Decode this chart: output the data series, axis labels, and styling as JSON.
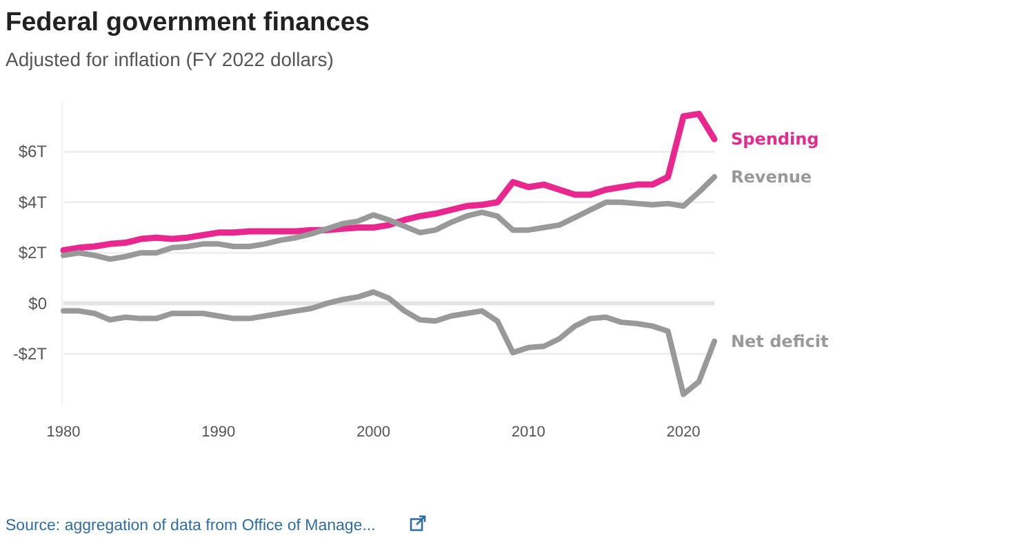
{
  "chart_data": {
    "type": "line",
    "title": "Federal government finances",
    "subtitle": "Adjusted for inflation (FY 2022 dollars)",
    "x": [
      1980,
      1981,
      1982,
      1983,
      1984,
      1985,
      1986,
      1987,
      1988,
      1989,
      1990,
      1991,
      1992,
      1993,
      1994,
      1995,
      1996,
      1997,
      1998,
      1999,
      2000,
      2001,
      2002,
      2003,
      2004,
      2005,
      2006,
      2007,
      2008,
      2009,
      2010,
      2011,
      2012,
      2013,
      2014,
      2015,
      2016,
      2017,
      2018,
      2019,
      2020,
      2021,
      2022
    ],
    "series": [
      {
        "name": "Spending",
        "color": "#e8288f",
        "values": [
          2.1,
          2.2,
          2.25,
          2.35,
          2.4,
          2.55,
          2.6,
          2.55,
          2.6,
          2.7,
          2.8,
          2.8,
          2.85,
          2.85,
          2.85,
          2.85,
          2.9,
          2.9,
          2.95,
          3.0,
          3.0,
          3.1,
          3.3,
          3.45,
          3.55,
          3.7,
          3.85,
          3.9,
          4.0,
          4.8,
          4.6,
          4.7,
          4.5,
          4.3,
          4.3,
          4.5,
          4.6,
          4.7,
          4.7,
          5.0,
          7.4,
          7.5,
          6.5
        ]
      },
      {
        "name": "Revenue",
        "color": "#999999",
        "values": [
          1.9,
          2.0,
          1.9,
          1.75,
          1.85,
          2.0,
          2.0,
          2.2,
          2.25,
          2.35,
          2.35,
          2.25,
          2.25,
          2.35,
          2.5,
          2.6,
          2.75,
          2.95,
          3.15,
          3.25,
          3.5,
          3.3,
          3.05,
          2.8,
          2.9,
          3.2,
          3.45,
          3.6,
          3.45,
          2.9,
          2.9,
          3.0,
          3.1,
          3.4,
          3.7,
          4.0,
          4.0,
          3.95,
          3.9,
          3.95,
          3.85,
          4.4,
          5.0
        ]
      },
      {
        "name": "Net deficit",
        "color": "#999999",
        "values": [
          -0.3,
          -0.3,
          -0.4,
          -0.65,
          -0.55,
          -0.6,
          -0.6,
          -0.4,
          -0.4,
          -0.4,
          -0.5,
          -0.6,
          -0.6,
          -0.5,
          -0.4,
          -0.3,
          -0.2,
          0,
          0.15,
          0.25,
          0.45,
          0.2,
          -0.3,
          -0.65,
          -0.7,
          -0.5,
          -0.4,
          -0.3,
          -0.7,
          -1.95,
          -1.75,
          -1.7,
          -1.4,
          -0.9,
          -0.6,
          -0.55,
          -0.75,
          -0.8,
          -0.9,
          -1.1,
          -3.6,
          -3.1,
          -1.5
        ]
      }
    ],
    "xlim": [
      1980,
      2022
    ],
    "xticks": [
      1980,
      1990,
      2000,
      2010,
      2020
    ],
    "ylim": [
      -4,
      8
    ],
    "yticks": [
      {
        "value": -2,
        "label": "-$2T"
      },
      {
        "value": 0,
        "label": "$0"
      },
      {
        "value": 2,
        "label": "$2T"
      },
      {
        "value": 4,
        "label": "$4T"
      },
      {
        "value": 6,
        "label": "$6T"
      }
    ],
    "grid": "y",
    "legend": false,
    "marker": "none",
    "line_style": "solid",
    "annotations": [
      "Source:  aggregation of data from Office of Manage..."
    ]
  }
}
